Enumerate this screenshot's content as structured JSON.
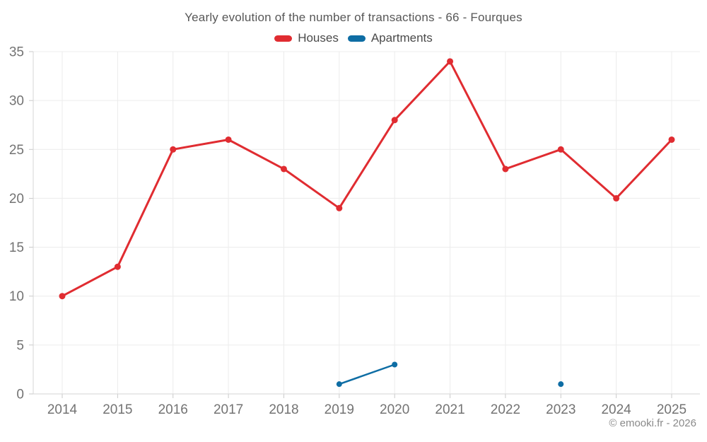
{
  "chart_data": {
    "type": "line",
    "title": "Yearly evolution of the number of transactions - 66 - Fourques",
    "categories": [
      "2014",
      "2015",
      "2016",
      "2017",
      "2018",
      "2019",
      "2020",
      "2021",
      "2022",
      "2023",
      "2024",
      "2025"
    ],
    "series": [
      {
        "name": "Houses",
        "color": "#e02c31",
        "values": [
          10,
          13,
          25,
          26,
          23,
          19,
          28,
          34,
          23,
          25,
          20,
          26
        ]
      },
      {
        "name": "Apartments",
        "color": "#0e6da4",
        "values": [
          null,
          null,
          null,
          null,
          null,
          1,
          3,
          null,
          null,
          1,
          null,
          null
        ]
      }
    ],
    "ylim": [
      0,
      35
    ],
    "ytick_step": 5,
    "grid": true,
    "legend_position": "top",
    "grid_color": "#ececec",
    "axis_color": "#d6d6d6",
    "tick_color": "#c9c9c9"
  },
  "footer": {
    "credit": "© emooki.fr - 2026"
  }
}
